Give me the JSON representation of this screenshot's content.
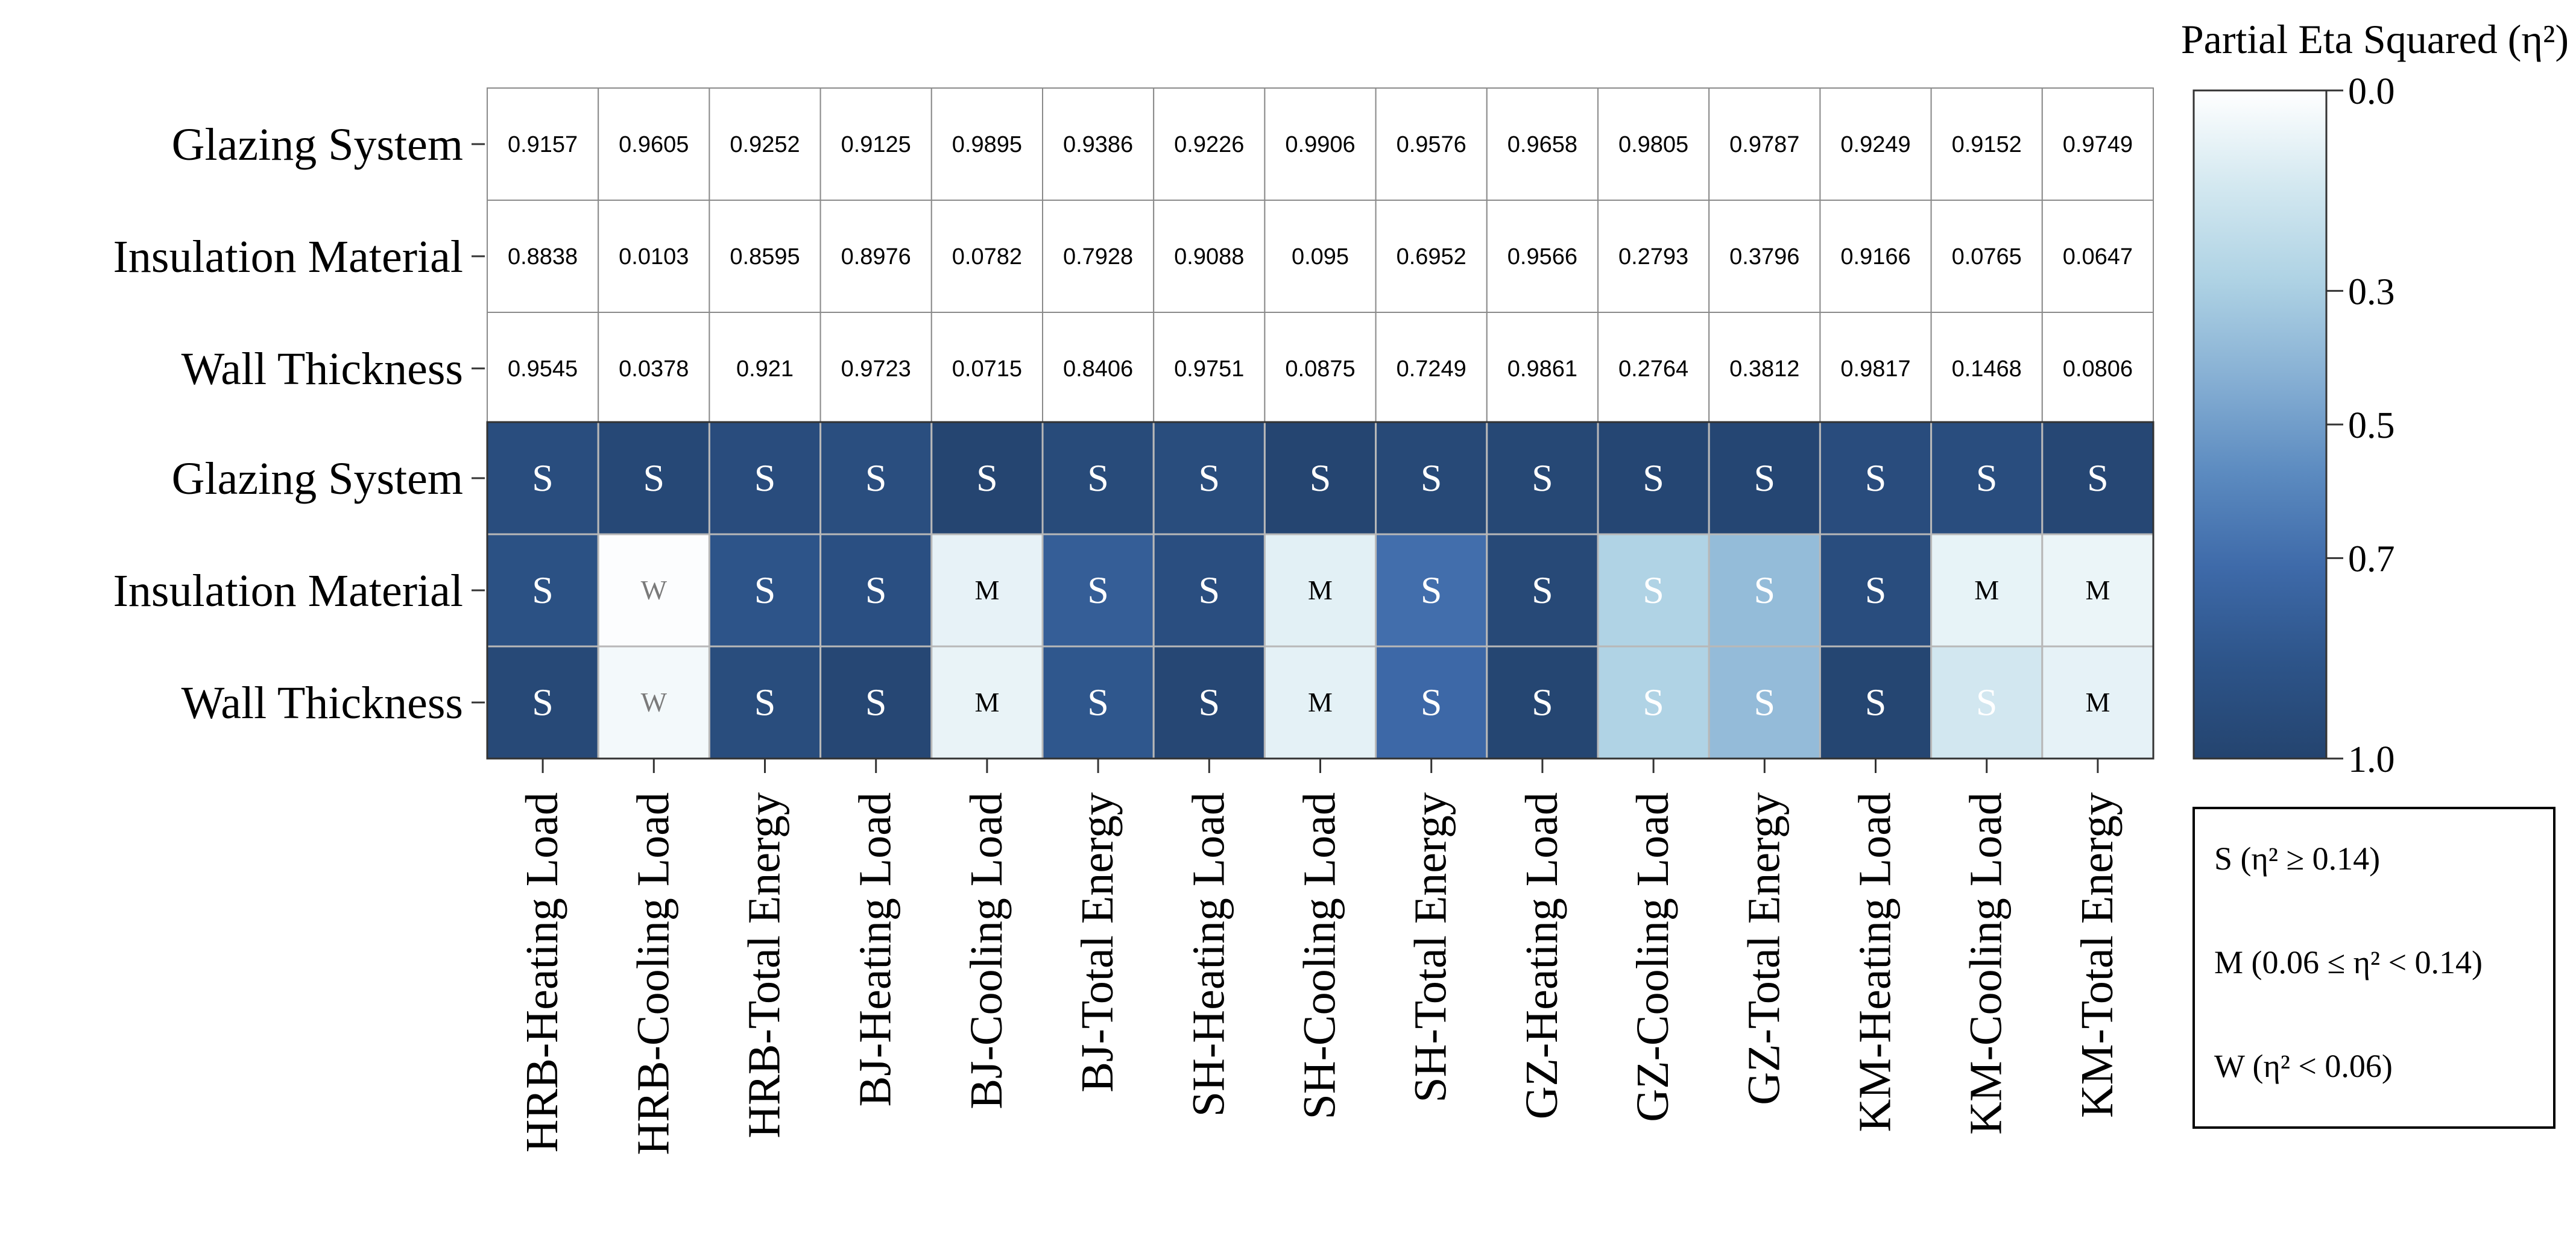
{
  "chart_data": {
    "type": "heatmap",
    "columns": [
      "HRB-Heating Load",
      "HRB-Cooling Load",
      "HRB-Total Energy",
      "BJ-Heating Load",
      "BJ-Cooling Load",
      "BJ-Total Energy",
      "SH-Heating Load",
      "SH-Cooling Load",
      "SH-Total Energy",
      "GZ-Heating Load",
      "GZ-Cooling Load",
      "GZ-Total Energy",
      "KM-Heating Load",
      "KM-Cooling Load",
      "KM-Total Energy"
    ],
    "rows": [
      "Glazing System",
      "Insulation Material",
      "Wall Thickness"
    ],
    "values": [
      [
        0.9157,
        0.9605,
        0.9252,
        0.9125,
        0.9895,
        0.9386,
        0.9226,
        0.9906,
        0.9576,
        0.9658,
        0.9805,
        0.9787,
        0.9249,
        0.9152,
        0.9749
      ],
      [
        0.8838,
        0.0103,
        0.8595,
        0.8976,
        0.0782,
        0.7928,
        0.9088,
        0.095,
        0.6952,
        0.9566,
        0.2793,
        0.3796,
        0.9166,
        0.0765,
        0.0647
      ],
      [
        0.9545,
        0.0378,
        0.921,
        0.9723,
        0.0715,
        0.8406,
        0.9751,
        0.0875,
        0.7249,
        0.9861,
        0.2764,
        0.3812,
        0.9817,
        0.1468,
        0.0806
      ]
    ],
    "value_labels": [
      [
        "0.9157",
        "0.9605",
        "0.9252",
        "0.9125",
        "0.9895",
        "0.9386",
        "0.9226",
        "0.9906",
        "0.9576",
        "0.9658",
        "0.9805",
        "0.9787",
        "0.9249",
        "0.9152",
        "0.9749"
      ],
      [
        "0.8838",
        "0.0103",
        "0.8595",
        "0.8976",
        "0.0782",
        "0.7928",
        "0.9088",
        "0.095",
        "0.6952",
        "0.9566",
        "0.2793",
        "0.3796",
        "0.9166",
        "0.0765",
        "0.0647"
      ],
      [
        "0.9545",
        "0.0378",
        "0.921",
        "0.9723",
        "0.0715",
        "0.8406",
        "0.9751",
        "0.0875",
        "0.7249",
        "0.9861",
        "0.2764",
        "0.3812",
        "0.9817",
        "0.1468",
        "0.0806"
      ]
    ],
    "effect_labels": [
      [
        "S",
        "S",
        "S",
        "S",
        "S",
        "S",
        "S",
        "S",
        "S",
        "S",
        "S",
        "S",
        "S",
        "S",
        "S"
      ],
      [
        "S",
        "W",
        "S",
        "S",
        "M",
        "S",
        "S",
        "M",
        "S",
        "S",
        "S",
        "S",
        "S",
        "M",
        "M"
      ],
      [
        "S",
        "W",
        "S",
        "S",
        "M",
        "S",
        "S",
        "M",
        "S",
        "S",
        "S",
        "S",
        "S",
        "S",
        "M"
      ]
    ],
    "colorbar": {
      "title": "Partial Eta Squared (η²)",
      "range": [
        0.0,
        1.0
      ],
      "ticks": [
        0.0,
        0.3,
        0.5,
        0.7,
        1.0
      ],
      "tick_labels": [
        "0.0",
        "0.3",
        "0.5",
        "0.7",
        "1.0"
      ],
      "colors": [
        "#ffffff",
        "#d3e8f0",
        "#aed2e4",
        "#87b0d4",
        "#5c8bc0",
        "#3e6aa9",
        "#2d5489",
        "#24446f"
      ]
    },
    "legend": {
      "placement": "bottom-right",
      "items": [
        "S (η² ≥ 0.14)",
        "M (0.06 ≤ η² < 0.14)",
        "W (η² < 0.06)"
      ]
    }
  }
}
